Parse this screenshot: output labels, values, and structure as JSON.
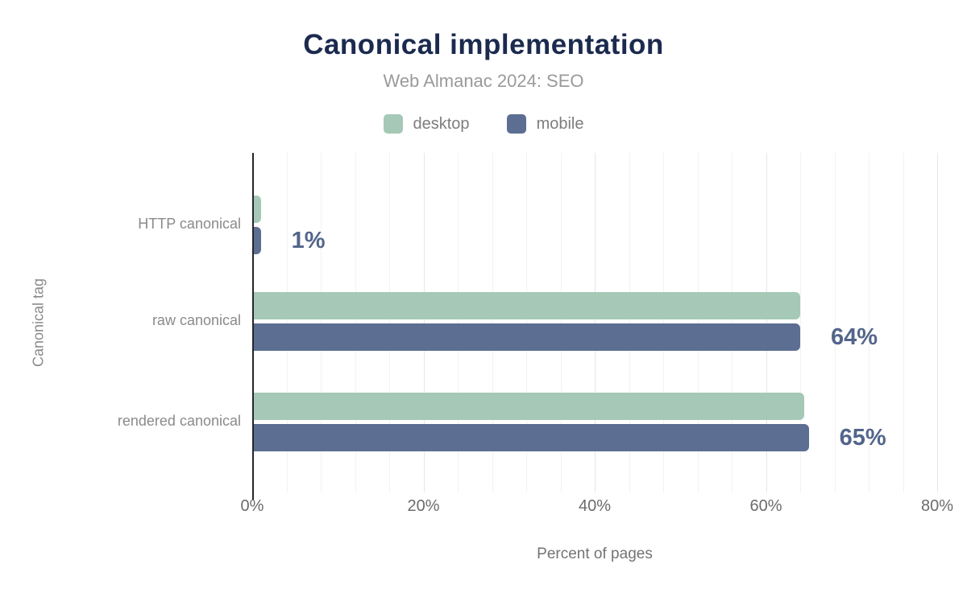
{
  "header": {
    "title": "Canonical implementation",
    "subtitle": "Web Almanac 2024: SEO"
  },
  "legend": {
    "items": [
      {
        "label": "desktop",
        "color": "#a5c9b6"
      },
      {
        "label": "mobile",
        "color": "#5c6e91"
      }
    ]
  },
  "axes": {
    "y_title": "Canonical tag",
    "x_title": "Percent of pages",
    "x_ticks": [
      {
        "value": 0,
        "label": "0%"
      },
      {
        "value": 20,
        "label": "20%"
      },
      {
        "value": 40,
        "label": "40%"
      },
      {
        "value": 60,
        "label": "60%"
      },
      {
        "value": 80,
        "label": "80%"
      }
    ],
    "x_max": 80,
    "grid_minor_step": 4
  },
  "chart_data": {
    "type": "bar",
    "orientation": "horizontal",
    "title": "Canonical implementation",
    "subtitle": "Web Almanac 2024: SEO",
    "xlabel": "Percent of pages",
    "ylabel": "Canonical tag",
    "xlim": [
      0,
      80
    ],
    "grid": "vertical minor gridlines every 4%, major every 20%",
    "legend_position": "top",
    "categories": [
      "HTTP canonical",
      "raw canonical",
      "rendered canonical"
    ],
    "series": [
      {
        "name": "desktop",
        "color": "#a5c9b6",
        "values": [
          1,
          64,
          64.5
        ]
      },
      {
        "name": "mobile",
        "color": "#5c6e91",
        "values": [
          1,
          64,
          65
        ]
      }
    ],
    "value_labels": [
      "1%",
      "64%",
      "65%"
    ]
  },
  "colors": {
    "background": "#ffffff",
    "title_text": "#1b2a4e",
    "subtitle_text": "#9a9a9a",
    "legend_text": "#7d7d7d",
    "category_text": "#8a8a8a",
    "tick_text": "#6b6b6b",
    "value_label_text": "#53658b",
    "axis_line": "#26262b",
    "grid_minor": "#f2f2f3",
    "grid_major": "#e7e7e9",
    "desktop_bar": "#a5c9b6",
    "mobile_bar": "#5c6e91"
  }
}
